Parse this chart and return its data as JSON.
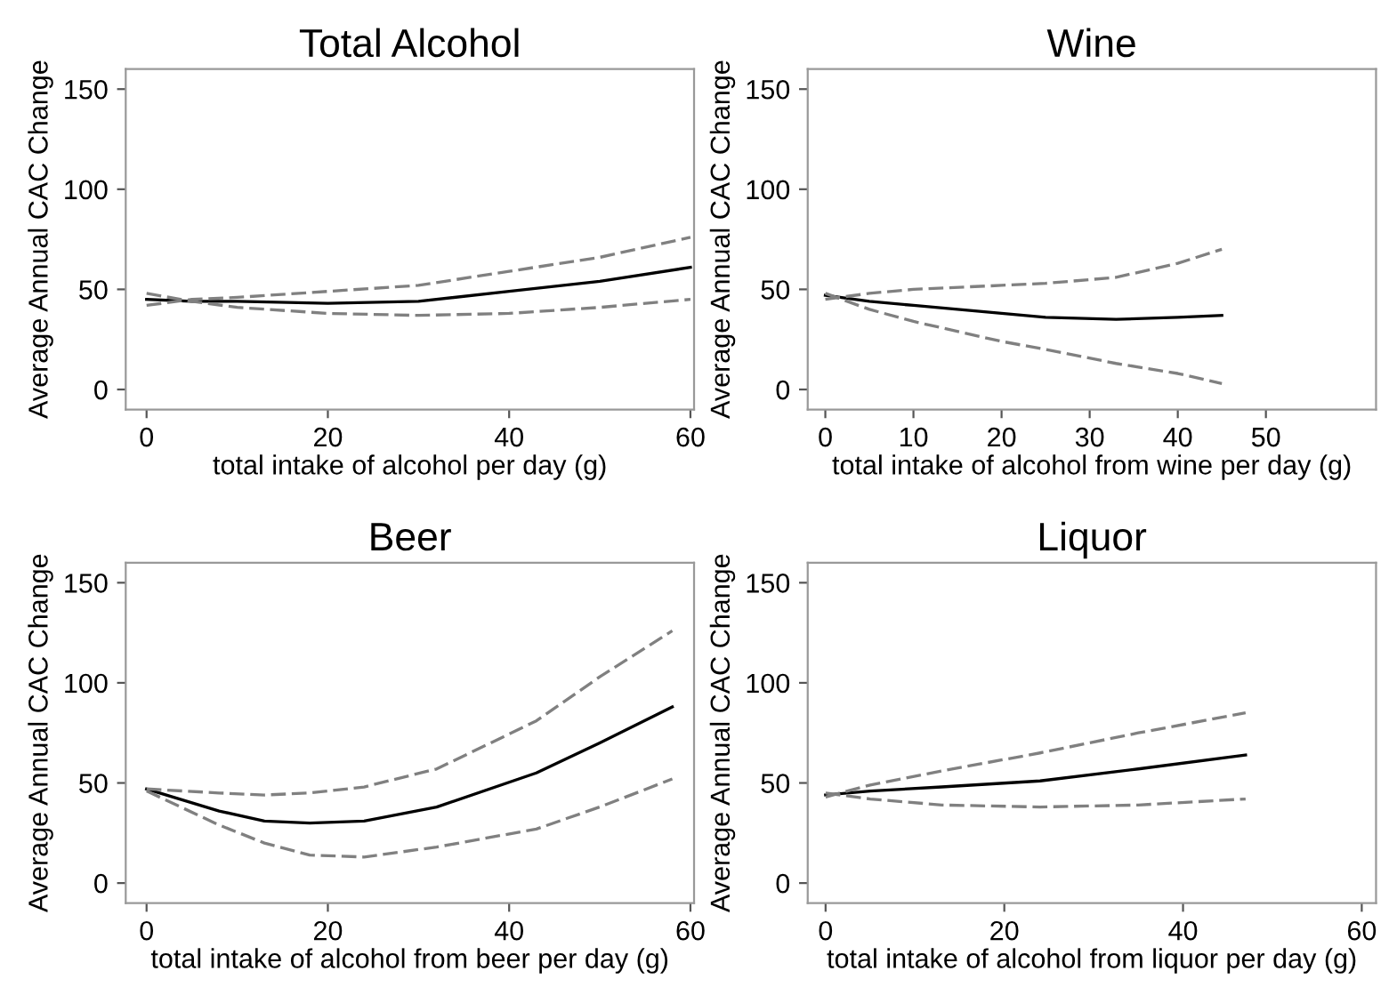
{
  "chart_data": [
    {
      "type": "line",
      "title": "Total Alcohol",
      "xlabel": "total intake of alcohol per day (g)",
      "ylabel": "Average Annual CAC Change",
      "xlim": [
        -2.3,
        60.4
      ],
      "ylim": [
        -10,
        160
      ],
      "xticks": [
        0,
        20,
        40,
        60
      ],
      "yticks": [
        0,
        50,
        100,
        150
      ],
      "grid": false,
      "marker": "none",
      "series": [
        {
          "color": "#000000",
          "line_style": "solid",
          "x": [
            0,
            5,
            10,
            20,
            30,
            40,
            50,
            60
          ],
          "values": [
            45,
            44,
            44,
            43,
            44,
            49,
            54,
            61
          ]
        },
        {
          "color": "#808080",
          "line_style": "dashed",
          "x": [
            0,
            5,
            10,
            20,
            30,
            40,
            50,
            60
          ],
          "values": [
            48,
            44,
            41,
            38,
            37,
            38,
            41,
            45
          ]
        },
        {
          "color": "#808080",
          "line_style": "dashed",
          "x": [
            0,
            5,
            10,
            20,
            30,
            40,
            50,
            60
          ],
          "values": [
            42,
            45,
            46,
            49,
            52,
            59,
            66,
            76
          ]
        }
      ]
    },
    {
      "type": "line",
      "title": "Wine",
      "xlabel": "total intake of alcohol from wine per day (g)",
      "ylabel": "Average Annual CAC Change",
      "xlim": [
        -2,
        62.5
      ],
      "ylim": [
        -10,
        160
      ],
      "xticks": [
        0,
        10,
        20,
        30,
        40,
        50
      ],
      "yticks": [
        0,
        50,
        100,
        150
      ],
      "grid": false,
      "marker": "none",
      "series": [
        {
          "color": "#000000",
          "line_style": "solid",
          "x": [
            0,
            5,
            10,
            20,
            25,
            33,
            40,
            45
          ],
          "values": [
            47,
            44,
            42,
            38,
            36,
            35,
            36,
            37
          ]
        },
        {
          "color": "#808080",
          "line_style": "dashed",
          "x": [
            0,
            5,
            10,
            20,
            25,
            33,
            40,
            45
          ],
          "values": [
            48,
            40,
            34,
            24,
            20,
            13,
            8,
            3
          ]
        },
        {
          "color": "#808080",
          "line_style": "dashed",
          "x": [
            0,
            5,
            10,
            20,
            25,
            33,
            40,
            45
          ],
          "values": [
            45,
            48,
            50,
            52,
            53,
            56,
            63,
            70
          ]
        }
      ]
    },
    {
      "type": "line",
      "title": "Beer",
      "xlabel": "total intake of alcohol from beer per day (g)",
      "ylabel": "Average Annual CAC Change",
      "xlim": [
        -2.3,
        60.4
      ],
      "ylim": [
        -10,
        160
      ],
      "xticks": [
        0,
        20,
        40,
        60
      ],
      "yticks": [
        0,
        50,
        100,
        150
      ],
      "grid": false,
      "marker": "none",
      "series": [
        {
          "color": "#000000",
          "line_style": "solid",
          "x": [
            0,
            8,
            13,
            18,
            24,
            32,
            43,
            50,
            58
          ],
          "values": [
            47,
            36,
            31,
            30,
            31,
            38,
            55,
            70,
            88
          ]
        },
        {
          "color": "#808080",
          "line_style": "dashed",
          "x": [
            0,
            8,
            13,
            18,
            24,
            32,
            43,
            50,
            58
          ],
          "values": [
            46,
            29,
            20,
            14,
            13,
            18,
            27,
            38,
            52
          ]
        },
        {
          "color": "#808080",
          "line_style": "dashed",
          "x": [
            0,
            8,
            13,
            18,
            24,
            32,
            43,
            50,
            58
          ],
          "values": [
            47,
            45,
            44,
            45,
            48,
            57,
            81,
            103,
            126
          ]
        }
      ]
    },
    {
      "type": "line",
      "title": "Liquor",
      "xlabel": "total intake of alcohol from liquor per day (g)",
      "ylabel": "Average Annual CAC Change",
      "xlim": [
        -2,
        61.6
      ],
      "ylim": [
        -10,
        160
      ],
      "xticks": [
        0,
        20,
        40,
        60
      ],
      "yticks": [
        0,
        50,
        100,
        150
      ],
      "grid": false,
      "marker": "none",
      "series": [
        {
          "color": "#000000",
          "line_style": "solid",
          "x": [
            0,
            5,
            13,
            24,
            35,
            47
          ],
          "values": [
            44,
            46,
            48,
            51,
            57,
            64
          ]
        },
        {
          "color": "#808080",
          "line_style": "dashed",
          "x": [
            0,
            5,
            13,
            24,
            35,
            47
          ],
          "values": [
            45,
            42,
            39,
            38,
            39,
            42
          ]
        },
        {
          "color": "#808080",
          "line_style": "dashed",
          "x": [
            0,
            5,
            13,
            24,
            35,
            47
          ],
          "values": [
            43,
            49,
            56,
            65,
            75,
            85
          ]
        }
      ]
    }
  ]
}
